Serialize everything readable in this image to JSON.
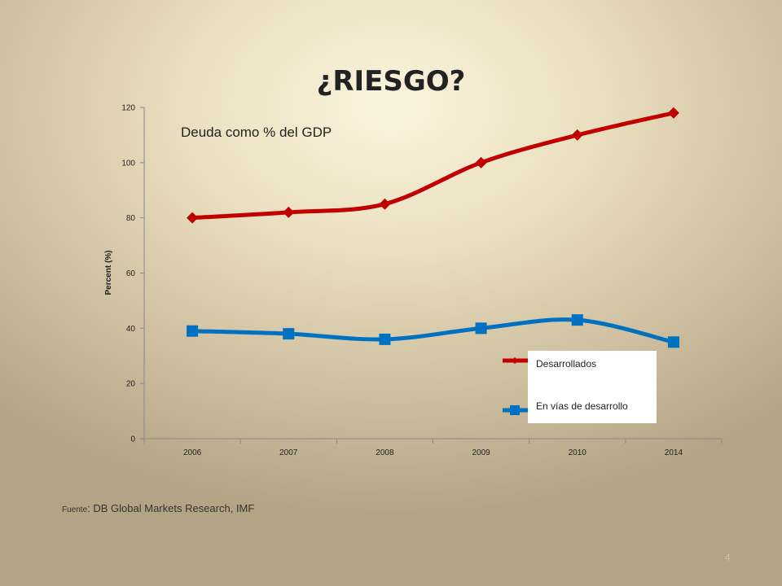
{
  "slide": {
    "title": "¿RIESGO?",
    "source_prefix": "Fuente",
    "source_db": ": DB Global",
    "source_rest": " Markets Research, IMF",
    "page_number": "4"
  },
  "chart_data": {
    "type": "line",
    "title": "Deuda como % del GDP",
    "xlabel": "",
    "ylabel": "Percent (%)",
    "categories": [
      "2006",
      "2007",
      "2008",
      "2009",
      "2010",
      "2014"
    ],
    "ylim": [
      0,
      120
    ],
    "yticks": [
      0,
      20,
      40,
      60,
      80,
      100,
      120
    ],
    "grid": false,
    "legend_position": "bottom-right",
    "series": [
      {
        "name": "Desarrollados",
        "values": [
          80,
          82,
          85,
          100,
          110,
          118
        ],
        "color": "#c00000",
        "marker": "diamond"
      },
      {
        "name": "En vías de desarrollo",
        "values": [
          39,
          38,
          36,
          40,
          43,
          35
        ],
        "color": "#0070c0",
        "marker": "square"
      }
    ]
  }
}
